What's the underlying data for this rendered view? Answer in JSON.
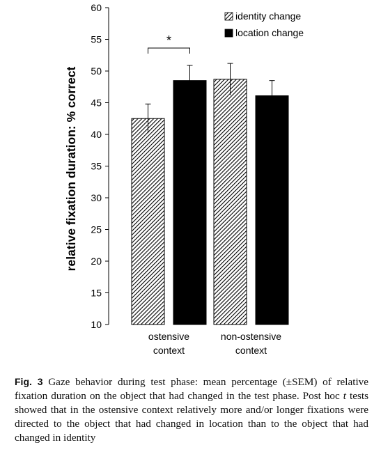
{
  "chart_data": {
    "type": "bar",
    "ylabel": "relative fixation duration: % correct",
    "ylim": [
      10,
      60
    ],
    "yticks": [
      "10",
      "15",
      "20",
      "25",
      "30",
      "35",
      "40",
      "45",
      "50",
      "55",
      "60"
    ],
    "categories": [
      "ostensive context",
      "non-ostensive context"
    ],
    "category_lines": [
      [
        "ostensive",
        "context"
      ],
      [
        "non-ostensive",
        "context"
      ]
    ],
    "series": [
      {
        "name": "identity change",
        "pattern": "diagonal-hatch",
        "color": "#000000",
        "values": [
          42.5,
          48.7
        ],
        "sem": [
          2.3,
          2.5
        ]
      },
      {
        "name": "location change",
        "pattern": "solid",
        "color": "#000000",
        "values": [
          48.5,
          46.1
        ],
        "sem": [
          2.4,
          2.4
        ]
      }
    ],
    "legend_position": "top-right",
    "annotations": [
      {
        "text": "*",
        "meaning": "significant difference within ostensive context"
      }
    ],
    "grid": false
  },
  "caption": {
    "label": "Fig. 3",
    "text_1": "Gaze behavior during test phase: mean percentage (±SEM) of relative fixation duration on the object that had changed in the test phase. Post hoc ",
    "italic": "t",
    "text_2": " tests showed that in the ostensive context relatively more and/or longer fixations were directed to the object that had changed in location than to the object that had changed in identity"
  }
}
